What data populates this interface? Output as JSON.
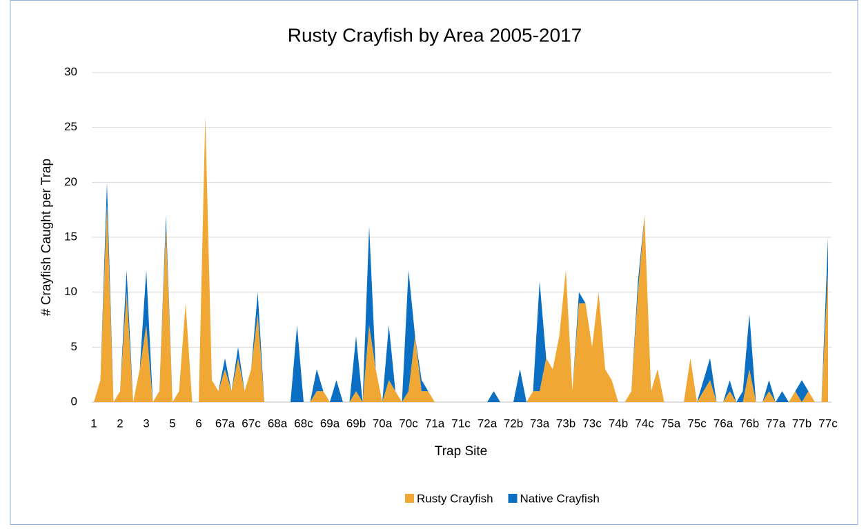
{
  "chart_data": {
    "type": "area",
    "stacked": true,
    "title": "Rusty Crayfish by Area 2005-2017",
    "x_label": "Trap Site",
    "y_label": "# Crayfish Caught per Trap",
    "categories": [
      "1",
      null,
      null,
      null,
      "2",
      null,
      null,
      null,
      "3",
      null,
      null,
      null,
      "5",
      null,
      null,
      null,
      "6",
      null,
      null,
      null,
      "67a",
      null,
      null,
      null,
      "67c",
      null,
      null,
      null,
      "68a",
      null,
      null,
      null,
      "68c",
      null,
      null,
      null,
      "69a",
      null,
      null,
      null,
      "69b",
      null,
      null,
      null,
      "70a",
      null,
      null,
      null,
      "70c",
      null,
      null,
      null,
      "71a",
      null,
      null,
      null,
      "71c",
      null,
      null,
      null,
      "72a",
      null,
      null,
      null,
      "72b",
      null,
      null,
      null,
      "73a",
      null,
      null,
      null,
      "73b",
      null,
      null,
      null,
      "73c",
      null,
      null,
      null,
      "74b",
      null,
      null,
      null,
      "74c",
      null,
      null,
      null,
      "75a",
      null,
      null,
      null,
      "75c",
      null,
      null,
      null,
      "76a",
      null,
      null,
      null,
      "76b",
      null,
      null,
      null,
      "77a",
      null,
      null,
      null,
      "77b",
      null,
      null,
      null,
      "77c"
    ],
    "series": [
      {
        "name": "Rusty Crayfish",
        "color": "#f0a733",
        "values": [
          0,
          2,
          18,
          0,
          1,
          10,
          0,
          3,
          7,
          0,
          1,
          16,
          0,
          1,
          9,
          0,
          0,
          26,
          2,
          1,
          3,
          1,
          4,
          1,
          3,
          8,
          0,
          0,
          0,
          0,
          0,
          0,
          0,
          0,
          1,
          1,
          0,
          0,
          0,
          0,
          1,
          0,
          7,
          3,
          0,
          2,
          1,
          0,
          1,
          6,
          1,
          1,
          0,
          0,
          0,
          0,
          0,
          0,
          0,
          0,
          0,
          0,
          0,
          0,
          0,
          0,
          0,
          1,
          1,
          4,
          3,
          6,
          12,
          1,
          9,
          9,
          5,
          10,
          3,
          2,
          0,
          0,
          1,
          10,
          17,
          1,
          3,
          0,
          0,
          0,
          0,
          4,
          0,
          1,
          2,
          0,
          0,
          1,
          0,
          0,
          3,
          0,
          0,
          1,
          0,
          0,
          0,
          1,
          0,
          1,
          0,
          0,
          12
        ]
      },
      {
        "name": "Native Crayfish",
        "color": "#0a6fc2",
        "values": [
          0,
          0,
          2,
          0,
          0,
          2,
          0,
          0,
          5,
          0,
          0,
          1,
          0,
          0,
          0,
          0,
          0,
          0,
          0,
          0,
          1,
          0,
          1,
          0,
          0,
          2,
          0,
          0,
          0,
          0,
          0,
          7,
          0,
          0,
          2,
          0,
          0,
          2,
          0,
          0,
          5,
          0,
          9,
          0,
          0,
          5,
          0,
          0,
          11,
          0,
          1,
          0,
          0,
          0,
          0,
          0,
          0,
          0,
          0,
          0,
          0,
          1,
          0,
          0,
          0,
          3,
          0,
          0,
          10,
          0,
          0,
          0,
          0,
          0,
          1,
          0,
          0,
          0,
          0,
          0,
          0,
          0,
          0,
          1,
          0,
          0,
          0,
          0,
          0,
          0,
          0,
          0,
          0,
          1,
          2,
          0,
          0,
          1,
          0,
          1,
          5,
          0,
          0,
          1,
          0,
          1,
          0,
          0,
          2,
          0,
          0,
          0,
          3
        ]
      }
    ],
    "ylim": [
      0,
      30
    ],
    "yticks": [
      0,
      5,
      10,
      15,
      20,
      25,
      30
    ],
    "grid": true,
    "legend": "bottom"
  }
}
